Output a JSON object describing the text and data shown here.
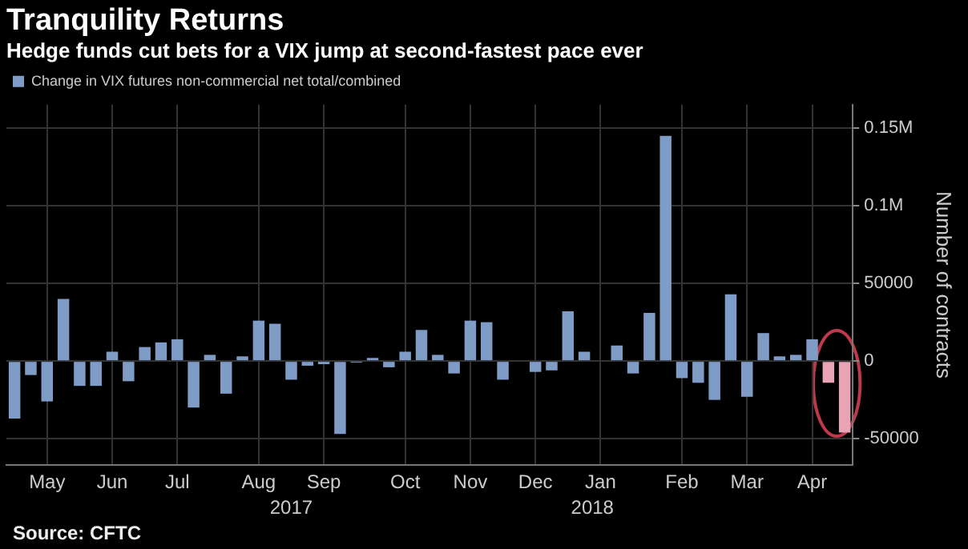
{
  "chart_data": {
    "type": "bar",
    "title": "Tranquility Returns",
    "subtitle": "Hedge funds cut bets for a VIX jump at second-fastest pace ever",
    "ylabel": "Number of contracts",
    "categories": [
      null,
      null,
      "May",
      null,
      null,
      null,
      "Jun",
      null,
      null,
      null,
      "Jul",
      null,
      null,
      null,
      null,
      "Aug",
      null,
      null,
      null,
      "Sep",
      null,
      null,
      null,
      null,
      "Oct",
      null,
      null,
      null,
      "Nov",
      null,
      null,
      null,
      "Dec",
      null,
      null,
      null,
      "Jan",
      null,
      null,
      null,
      null,
      "Feb",
      null,
      null,
      null,
      "Mar",
      null,
      null,
      null,
      "Apr",
      null,
      null
    ],
    "series": [
      {
        "name": "Change in VIX futures non-commercial net total/combined",
        "color": "#7f9cc6",
        "colors": [
          "#7f9cc6",
          "#7f9cc6",
          "#7f9cc6",
          "#7f9cc6",
          "#7f9cc6",
          "#7f9cc6",
          "#7f9cc6",
          "#7f9cc6",
          "#7f9cc6",
          "#7f9cc6",
          "#7f9cc6",
          "#7f9cc6",
          "#7f9cc6",
          "#7f9cc6",
          "#7f9cc6",
          "#7f9cc6",
          "#7f9cc6",
          "#7f9cc6",
          "#7f9cc6",
          "#7f9cc6",
          "#7f9cc6",
          "#7f9cc6",
          "#7f9cc6",
          "#7f9cc6",
          "#7f9cc6",
          "#7f9cc6",
          "#7f9cc6",
          "#7f9cc6",
          "#7f9cc6",
          "#7f9cc6",
          "#7f9cc6",
          "#7f9cc6",
          "#7f9cc6",
          "#7f9cc6",
          "#7f9cc6",
          "#7f9cc6",
          "#7f9cc6",
          "#7f9cc6",
          "#7f9cc6",
          "#7f9cc6",
          "#7f9cc6",
          "#7f9cc6",
          "#7f9cc6",
          "#7f9cc6",
          "#7f9cc6",
          "#7f9cc6",
          "#7f9cc6",
          "#7f9cc6",
          "#7f9cc6",
          "#7f9cc6",
          "#e8a3b5",
          "#e8a3b5"
        ],
        "values": [
          -37000,
          -9000,
          -26000,
          40000,
          -16000,
          -16000,
          6000,
          -13000,
          9000,
          12000,
          14000,
          -30000,
          4000,
          -21000,
          3000,
          26000,
          24000,
          -12000,
          -3000,
          -2000,
          -47000,
          -1000,
          2000,
          -4000,
          6000,
          20000,
          4000,
          -8000,
          26000,
          25000,
          -12000,
          0,
          -7000,
          -6000,
          32000,
          6000,
          0,
          10000,
          -8000,
          31000,
          145000,
          -11000,
          -14000,
          -25000,
          43000,
          -23000,
          18000,
          3000,
          4000,
          14000,
          -14000,
          -46000
        ]
      }
    ],
    "ylim": [
      -67000,
      165000
    ],
    "yticks": [
      -50000,
      0,
      50000,
      {
        "value": 100000,
        "label": "0.1M"
      },
      {
        "value": 150000,
        "label": "0.15M"
      }
    ],
    "grid": true,
    "legend": "top left",
    "annotations": [
      "2017",
      "2018",
      "Source: CFTC"
    ]
  }
}
